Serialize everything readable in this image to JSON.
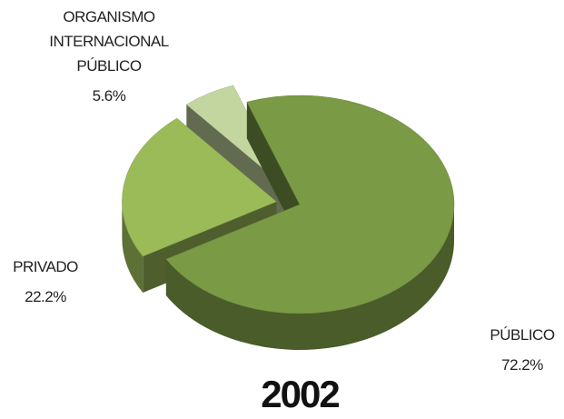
{
  "chart_data": {
    "type": "pie3d",
    "title": "2002",
    "categories": [
      "PÚBLICO",
      "PRIVADO",
      "ORGANISMO INTERNACIONAL PÚBLICO"
    ],
    "values": [
      72.2,
      22.2,
      5.6
    ],
    "value_labels": [
      "72.2%",
      "22.2%",
      "5.6%"
    ],
    "colors": [
      "#7a9a45",
      "#9bbb59",
      "#c4d6a0"
    ]
  }
}
